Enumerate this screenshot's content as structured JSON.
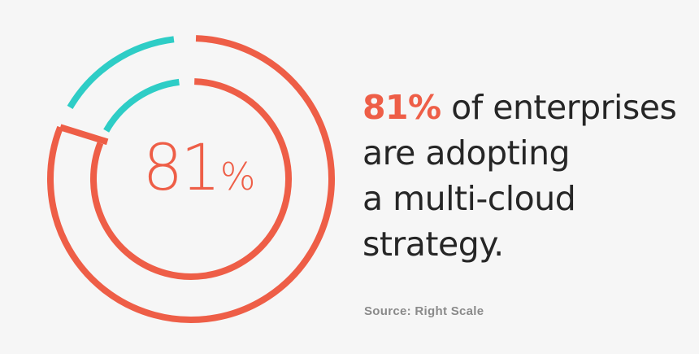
{
  "chart_data": {
    "type": "pie",
    "variant": "double-ring donut",
    "rings": [
      {
        "ring": "outer",
        "percent": 81,
        "colors": {
          "value": "#ee5e47",
          "remainder": "#2ecdc6"
        }
      },
      {
        "ring": "inner",
        "percent": 81,
        "colors": {
          "value": "#ee5e47",
          "remainder": "#2ecdc6"
        }
      }
    ],
    "center_label": {
      "value": "81",
      "unit": "%"
    }
  },
  "headline": {
    "highlight": "81%",
    "line1_rest": " of enterprises",
    "line2": "are adopting",
    "line3": "a multi-cloud",
    "line4": "strategy."
  },
  "source": "Source: Right Scale",
  "colors": {
    "accent": "#ee5e47",
    "teal": "#2ecdc6",
    "text": "#262626",
    "muted": "#8a8a8a",
    "background": "#f6f6f6"
  }
}
